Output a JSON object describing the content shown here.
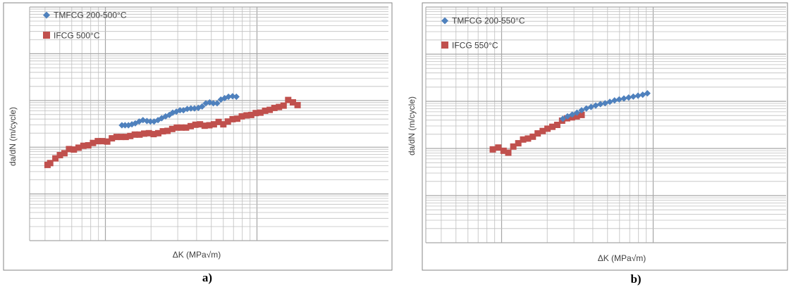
{
  "colors": {
    "tmfcg": "#4f81bd",
    "ifcg": "#c0504d",
    "grid": "#bfbfbf",
    "border": "#868686"
  },
  "chart_data": [
    {
      "id": "a",
      "panel_label": "a)",
      "type": "scatter",
      "xlabel": "ΔK (MPa√m)",
      "ylabel": "da/dN (m/cycle)",
      "x_scale": "log",
      "y_scale": "log",
      "x_ticks_shown": false,
      "y_ticks_shown": false,
      "xlim_decades": [
        0.5,
        2.0
      ],
      "ylim_decades": [
        -9.0,
        -4.0
      ],
      "grid": true,
      "legend": "top-left",
      "series": [
        {
          "name": "TMFCG 200-500°C",
          "marker": "diamond",
          "color_key": "tmfcg",
          "x": [
            1.109,
            1.13,
            1.152,
            1.175,
            1.197,
            1.223,
            1.248,
            1.274,
            1.297,
            1.321,
            1.347,
            1.371,
            1.397,
            1.422,
            1.444,
            1.468,
            1.492,
            1.515,
            1.54,
            1.564,
            1.588,
            1.613,
            1.638,
            1.663,
            1.688,
            1.712,
            1.737,
            1.762,
            1.787,
            1.812,
            1.839,
            1.864
          ],
          "y": [
            -6.53,
            -6.53,
            -6.53,
            -6.51,
            -6.49,
            -6.45,
            -6.42,
            -6.44,
            -6.45,
            -6.45,
            -6.42,
            -6.38,
            -6.34,
            -6.31,
            -6.26,
            -6.24,
            -6.21,
            -6.21,
            -6.18,
            -6.17,
            -6.17,
            -6.16,
            -6.13,
            -6.06,
            -6.04,
            -6.06,
            -6.06,
            -5.98,
            -5.95,
            -5.92,
            -5.91,
            -5.92
          ]
        },
        {
          "name": "IFCG 500°C",
          "marker": "square",
          "color_key": "ifcg",
          "x": [
            0.618,
            0.636,
            0.67,
            0.7,
            0.73,
            0.76,
            0.792,
            0.823,
            0.855,
            0.887,
            0.918,
            0.95,
            0.98,
            1.012,
            1.043,
            1.074,
            1.104,
            1.134,
            1.164,
            1.194,
            1.225,
            1.256,
            1.287,
            1.318,
            1.349,
            1.379,
            1.41,
            1.441,
            1.471,
            1.502,
            1.532,
            1.563,
            1.594,
            1.624,
            1.655,
            1.686,
            1.716,
            1.747,
            1.778,
            1.808,
            1.839,
            1.87,
            1.9,
            1.931,
            1.962,
            1.992,
            2.023,
            2.054,
            2.084,
            2.115,
            2.145,
            2.176,
            2.206,
            2.237,
            2.268
          ],
          "y": [
            -7.38,
            -7.34,
            -7.24,
            -7.17,
            -7.13,
            -7.04,
            -7.05,
            -7.01,
            -6.97,
            -6.96,
            -6.91,
            -6.87,
            -6.87,
            -6.88,
            -6.81,
            -6.78,
            -6.78,
            -6.78,
            -6.76,
            -6.73,
            -6.73,
            -6.71,
            -6.7,
            -6.72,
            -6.7,
            -6.66,
            -6.65,
            -6.61,
            -6.58,
            -6.58,
            -6.58,
            -6.55,
            -6.52,
            -6.51,
            -6.54,
            -6.53,
            -6.51,
            -6.46,
            -6.51,
            -6.45,
            -6.4,
            -6.39,
            -6.34,
            -6.32,
            -6.31,
            -6.27,
            -6.26,
            -6.22,
            -6.2,
            -6.16,
            -6.14,
            -6.11,
            -5.99,
            -6.04,
            -6.1
          ]
        }
      ]
    },
    {
      "id": "b",
      "panel_label": "b)",
      "type": "scatter",
      "xlabel": "ΔK (MPa√m)",
      "ylabel": "da/dN (m/cycle)",
      "x_scale": "log",
      "y_scale": "log",
      "x_ticks_shown": false,
      "y_ticks_shown": false,
      "xlim_decades": [
        0.5,
        2.0
      ],
      "ylim_decades": [
        -9.0,
        -4.0
      ],
      "grid": true,
      "legend": "top-left",
      "series": [
        {
          "name": "TMFCG 200-550°C",
          "marker": "diamond",
          "color_key": "tmfcg",
          "x": [
            1.404,
            1.435,
            1.466,
            1.497,
            1.528,
            1.559,
            1.59,
            1.621,
            1.652,
            1.683,
            1.714,
            1.745,
            1.776,
            1.807,
            1.838,
            1.869,
            1.9,
            1.931,
            1.962
          ],
          "y": [
            -6.37,
            -6.32,
            -6.28,
            -6.24,
            -6.19,
            -6.15,
            -6.12,
            -6.09,
            -6.06,
            -6.04,
            -6.01,
            -5.98,
            -5.96,
            -5.94,
            -5.92,
            -5.9,
            -5.88,
            -5.86,
            -5.83
          ]
        },
        {
          "name": "IFCG 550°C",
          "marker": "square",
          "color_key": "ifcg",
          "x": [
            0.942,
            0.978,
            1.013,
            1.044,
            1.077,
            1.11,
            1.142,
            1.174,
            1.206,
            1.238,
            1.271,
            1.303,
            1.335,
            1.367,
            1.399,
            1.432,
            1.464,
            1.496,
            1.528
          ],
          "y": [
            -7.02,
            -6.98,
            -7.05,
            -7.09,
            -6.96,
            -6.89,
            -6.81,
            -6.79,
            -6.75,
            -6.68,
            -6.63,
            -6.58,
            -6.54,
            -6.5,
            -6.41,
            -6.36,
            -6.34,
            -6.32,
            -6.29
          ]
        }
      ]
    }
  ]
}
